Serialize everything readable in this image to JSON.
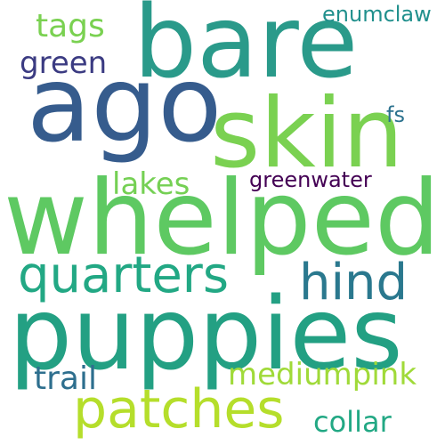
{
  "words": [
    {
      "text": "bare",
      "color": "#2a9a8a"
    },
    {
      "text": "ago",
      "color": "#365c8d"
    },
    {
      "text": "skin",
      "color": "#7ad151"
    },
    {
      "text": "whelped",
      "color": "#5ec962"
    },
    {
      "text": "puppies",
      "color": "#23a083"
    },
    {
      "text": "patches",
      "color": "#b5de2b"
    },
    {
      "text": "quarters",
      "color": "#22a884"
    },
    {
      "text": "hind",
      "color": "#2a788e"
    },
    {
      "text": "tags",
      "color": "#7ad151"
    },
    {
      "text": "green",
      "color": "#3b3b82"
    },
    {
      "text": "enumclaw",
      "color": "#21908d"
    },
    {
      "text": "fs",
      "color": "#2c728e"
    },
    {
      "text": "lakes",
      "color": "#75d054"
    },
    {
      "text": "greenwater",
      "color": "#440154"
    },
    {
      "text": "mediumpink",
      "color": "#a0da39"
    },
    {
      "text": "trail",
      "color": "#2e6f8e"
    },
    {
      "text": "collar",
      "color": "#22a884"
    }
  ]
}
